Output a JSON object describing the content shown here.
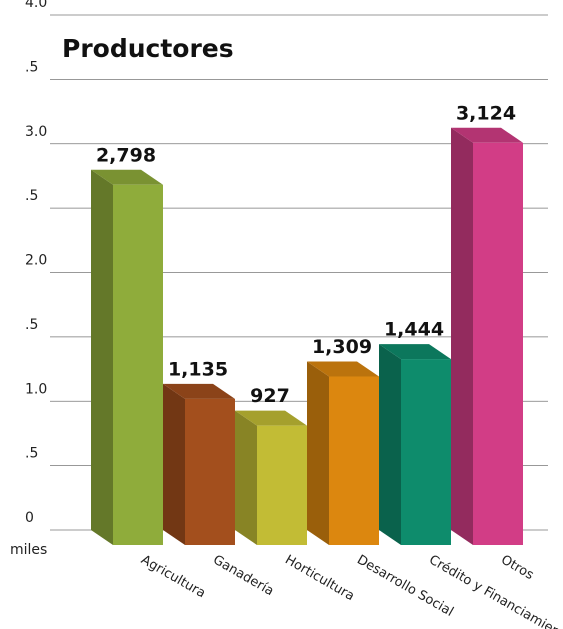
{
  "chart_data": {
    "type": "bar3d",
    "title": "Productores",
    "categories": [
      "Agricultura",
      "Ganadería",
      "Horticultura",
      "Desarrollo Social",
      "Crédito y Financiamiento",
      "Otros"
    ],
    "values": [
      2.798,
      1.135,
      0.927,
      1.309,
      1.444,
      3.124
    ],
    "value_labels": [
      "2,798",
      "1,135",
      "927",
      "1,309",
      "1,444",
      "3,124"
    ],
    "colors": [
      "#8fac3b",
      "#a34f1d",
      "#c2bc35",
      "#dc870f",
      "#0e8c6c",
      "#d23d86"
    ],
    "y_unit": "miles",
    "ylim": [
      0,
      4
    ],
    "yticks": [
      0,
      {
        "value": 0.5,
        "label": ".5"
      },
      {
        "value": 1,
        "label": "1.0"
      },
      {
        "value": 1.5,
        "label": ".5"
      },
      {
        "value": 2,
        "label": "2.0"
      },
      {
        "value": 2.5,
        "label": ".5"
      },
      {
        "value": 3,
        "label": "3.0"
      },
      {
        "value": 3.5,
        "label": ".5"
      },
      {
        "value": 4,
        "label": "4.0"
      }
    ],
    "grid": true
  }
}
